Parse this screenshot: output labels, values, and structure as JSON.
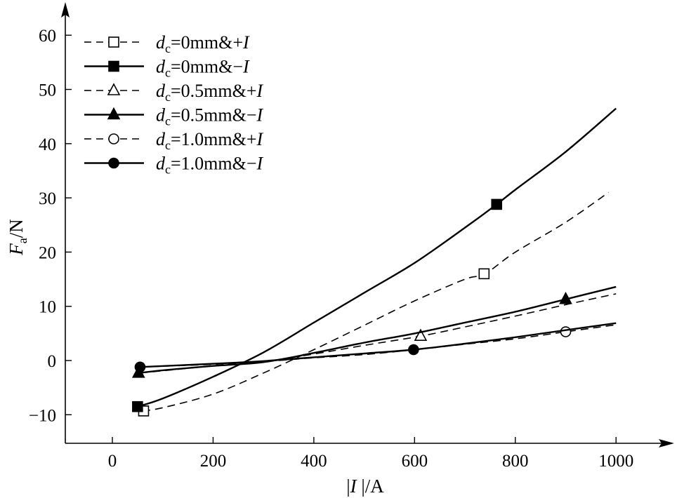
{
  "chart_data": {
    "type": "line",
    "title": "",
    "xlabel": {
      "pre": "|",
      "var": "I",
      "post": " |/A"
    },
    "ylabel": {
      "var": "F",
      "sub": "a",
      "post": "/N"
    },
    "xlim": [
      -100,
      1000
    ],
    "ylim": [
      -15,
      65
    ],
    "xticks": [
      0,
      200,
      400,
      600,
      800,
      1000
    ],
    "yticks": [
      -10,
      0,
      10,
      20,
      30,
      40,
      50,
      60
    ],
    "xtick_labels": [
      "0",
      "200",
      "400",
      "600",
      "800",
      "1000"
    ],
    "ytick_labels": [
      "−10",
      "0",
      "10",
      "20",
      "30",
      "40",
      "50",
      "60"
    ],
    "legend_position": "top-left",
    "series": [
      {
        "name": "dc=0mm&+I",
        "legend": {
          "d": "d",
          "sub": "c",
          "mid": "=0mm&+",
          "I": "I"
        },
        "dash": true,
        "marker": "square",
        "filled": false,
        "x": [
          60,
          100,
          200,
          300,
          400,
          500,
          600,
          700,
          740,
          800,
          900,
          985
        ],
        "y": [
          -9.3,
          -8.7,
          -6.2,
          -2.3,
          2.0,
          6.5,
          11.0,
          15.0,
          16.0,
          20.0,
          25.5,
          31.0
        ],
        "markers": [
          [
            62,
            -9.3
          ],
          [
            738,
            16.0
          ]
        ]
      },
      {
        "name": "dc=0mm&−I",
        "legend": {
          "d": "d",
          "sub": "c",
          "mid": "=0mm&−",
          "I": "I"
        },
        "dash": false,
        "marker": "square",
        "filled": true,
        "x": [
          50,
          100,
          200,
          300,
          400,
          500,
          600,
          700,
          763,
          800,
          900,
          1000
        ],
        "y": [
          -8.5,
          -7.0,
          -3.0,
          1.5,
          7.0,
          12.5,
          18.0,
          24.5,
          28.8,
          31.5,
          38.5,
          46.5
        ],
        "markers": [
          [
            50,
            -8.5
          ],
          [
            763,
            28.8
          ]
        ]
      },
      {
        "name": "dc=0.5mm&+I",
        "legend": {
          "d": "d",
          "sub": "c",
          "mid": "=0.5mm&+",
          "I": "I"
        },
        "dash": true,
        "marker": "triangle",
        "filled": false,
        "x": [
          55,
          200,
          300,
          400,
          500,
          612,
          700,
          800,
          900,
          1000
        ],
        "y": [
          -2.3,
          -1.0,
          -0.2,
          1.2,
          2.8,
          4.5,
          6.2,
          8.2,
          10.3,
          12.3
        ],
        "markers": [
          [
            612,
            4.5
          ]
        ]
      },
      {
        "name": "dc=0.5mm&−I",
        "legend": {
          "d": "d",
          "sub": "c",
          "mid": "=0.5mm&−",
          "I": "I"
        },
        "dash": false,
        "marker": "triangle",
        "filled": true,
        "x": [
          52,
          100,
          200,
          300,
          400,
          500,
          600,
          700,
          800,
          900,
          1000
        ],
        "y": [
          -2.3,
          -1.8,
          -1.0,
          -0.3,
          1.4,
          3.3,
          5.0,
          7.0,
          9.0,
          11.3,
          13.6
        ],
        "markers": [
          [
            52,
            -2.3
          ],
          [
            900,
            11.3
          ]
        ]
      },
      {
        "name": "dc=1.0mm&+I",
        "legend": {
          "d": "d",
          "sub": "c",
          "mid": "=1.0mm&+",
          "I": "I"
        },
        "dash": true,
        "marker": "circle",
        "filled": false,
        "x": [
          55,
          200,
          300,
          400,
          500,
          600,
          700,
          800,
          900,
          1000
        ],
        "y": [
          -1.2,
          -0.7,
          -0.2,
          0.5,
          1.1,
          2.0,
          3.0,
          4.0,
          5.3,
          6.6
        ],
        "markers": [
          [
            900,
            5.3
          ]
        ]
      },
      {
        "name": "dc=1.0mm&−I",
        "legend": {
          "d": "d",
          "sub": "c",
          "mid": "=1.0mm&−",
          "I": "I"
        },
        "dash": false,
        "marker": "circle",
        "filled": true,
        "x": [
          55,
          200,
          300,
          400,
          500,
          598,
          700,
          800,
          900,
          1000
        ],
        "y": [
          -1.2,
          -0.6,
          -0.1,
          0.6,
          1.3,
          2.0,
          3.1,
          4.3,
          5.6,
          6.9
        ],
        "markers": [
          [
            55,
            -1.2
          ],
          [
            598,
            2.0
          ]
        ]
      }
    ]
  }
}
